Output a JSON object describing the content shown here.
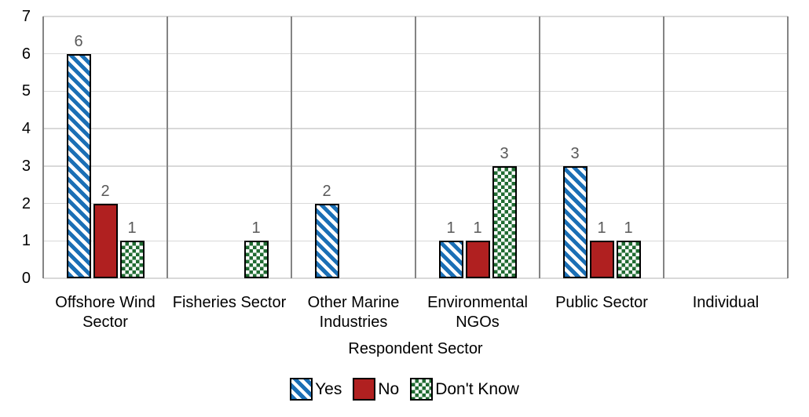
{
  "chart_data": {
    "type": "bar",
    "title": "",
    "xlabel": "Respondent Sector",
    "ylabel": "",
    "ylim": [
      0,
      7
    ],
    "y_ticks": [
      0,
      1,
      2,
      3,
      4,
      5,
      6,
      7
    ],
    "grid": "horizontal gridlines at each integer; vertical gray separators between categories",
    "legend_position": "bottom-center",
    "bar_value_labels_shown": true,
    "categories": [
      "Offshore Wind Sector",
      "Fisheries Sector",
      "Other Marine Industries",
      "Environmental NGOs",
      "Public Sector",
      "Individual"
    ],
    "series": [
      {
        "name": "Yes",
        "pattern": "diagonal-stripes",
        "color": "#1B6FB5",
        "values": [
          6,
          0,
          2,
          1,
          3,
          0
        ]
      },
      {
        "name": "No",
        "pattern": "solid",
        "color": "#B02020",
        "values": [
          2,
          0,
          0,
          1,
          1,
          0
        ]
      },
      {
        "name": "Don't Know",
        "pattern": "checkerboard",
        "color": "#206B32",
        "values": [
          1,
          1,
          0,
          3,
          1,
          0
        ]
      }
    ]
  },
  "colors": {
    "background": "#FFFFFF",
    "gridline": "#D9D9D9",
    "category_separator": "#848484",
    "bar_border": "#000000",
    "data_label": "#595959",
    "axis_text": "#000000"
  }
}
